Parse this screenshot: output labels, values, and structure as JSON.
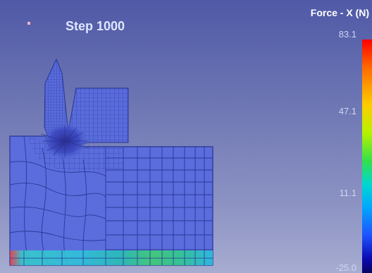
{
  "viewport": {
    "step_label": "Step 1000",
    "marker_icon": "point-marker-icon"
  },
  "legend": {
    "title": "Force - X (N)",
    "ticks": [
      "83.1",
      "47.1",
      "11.1",
      "-25.0"
    ],
    "min": -25.0,
    "max": 83.1,
    "colormap": [
      "#ff0000",
      "#ff6a00",
      "#ffcc00",
      "#b6f200",
      "#33e04a",
      "#00d8d0",
      "#00a6ff",
      "#1e52ff",
      "#0a0ab0",
      "#050560"
    ]
  },
  "colors": {
    "mesh_fill": "#5a6cdb",
    "mesh_line": "#26348f",
    "dense_mesh": "#2a3aa8"
  }
}
